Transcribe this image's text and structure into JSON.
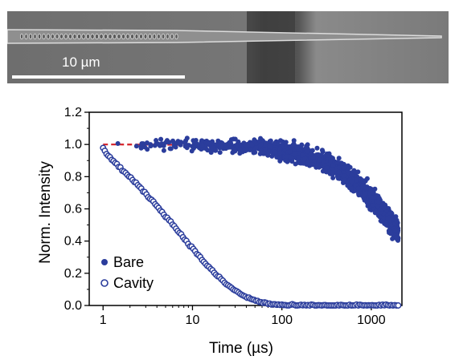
{
  "sem_image": {
    "scale_bar_label": "10 µm",
    "colors": {
      "background": "#6f6f6f",
      "waveguide": "#e8e8e8",
      "scale_bar": "#ffffff"
    }
  },
  "chart_data": {
    "type": "scatter",
    "xlabel": "Time (µs)",
    "ylabel": "Norm. Intensity",
    "xscale": "log",
    "xlim": [
      0.7,
      2200
    ],
    "ylim": [
      0.0,
      1.2
    ],
    "xticks": [
      1,
      10,
      100,
      1000
    ],
    "xtick_labels": [
      "1",
      "10",
      "100",
      "1000"
    ],
    "yticks": [
      0.0,
      0.2,
      0.4,
      0.6,
      0.8,
      1.0,
      1.2
    ],
    "ytick_labels": [
      "0.0",
      "0.2",
      "0.4",
      "0.6",
      "0.8",
      "1.0",
      "1.2"
    ],
    "grid": false,
    "legend_position": "bottom-left",
    "series": [
      {
        "name": "Bare",
        "marker": "filled-circle",
        "color": "#2b3d9c",
        "description": "noisy decay, fit follows single exponential with lifetime about 2500 µs",
        "sample_points": [
          [
            1,
            0.98
          ],
          [
            5,
            1.05
          ],
          [
            10,
            1.0
          ],
          [
            50,
            0.98
          ],
          [
            100,
            0.96
          ],
          [
            300,
            0.88
          ],
          [
            1000,
            0.66
          ],
          [
            2000,
            0.45
          ]
        ]
      },
      {
        "name": "Cavity",
        "marker": "open-circle",
        "color": "#2b3d9c",
        "description": "fast decay",
        "sample_points": [
          [
            1,
            0.98
          ],
          [
            2,
            0.82
          ],
          [
            3,
            0.73
          ],
          [
            4,
            0.65
          ],
          [
            5,
            0.59
          ],
          [
            6,
            0.53
          ],
          [
            8,
            0.43
          ],
          [
            10,
            0.36
          ],
          [
            15,
            0.24
          ],
          [
            20,
            0.17
          ],
          [
            30,
            0.1
          ],
          [
            50,
            0.05
          ],
          [
            100,
            0.02
          ],
          [
            200,
            0.01
          ],
          [
            1000,
            0.0
          ],
          [
            2000,
            0.0
          ]
        ]
      }
    ],
    "fits": [
      {
        "style": "dashed",
        "color": "#d42027",
        "points": [
          [
            1,
            1.0
          ],
          [
            10,
            1.0
          ],
          [
            100,
            0.96
          ],
          [
            300,
            0.89
          ],
          [
            1000,
            0.67
          ],
          [
            2000,
            0.45
          ]
        ]
      },
      {
        "style": "solid",
        "color": "#d42027",
        "points": [
          [
            1,
            0.98
          ],
          [
            2,
            0.84
          ],
          [
            4,
            0.65
          ],
          [
            6,
            0.53
          ],
          [
            10,
            0.36
          ],
          [
            20,
            0.17
          ],
          [
            50,
            0.05
          ],
          [
            100,
            0.02
          ],
          [
            300,
            0.005
          ],
          [
            2000,
            0.0
          ]
        ]
      }
    ]
  }
}
